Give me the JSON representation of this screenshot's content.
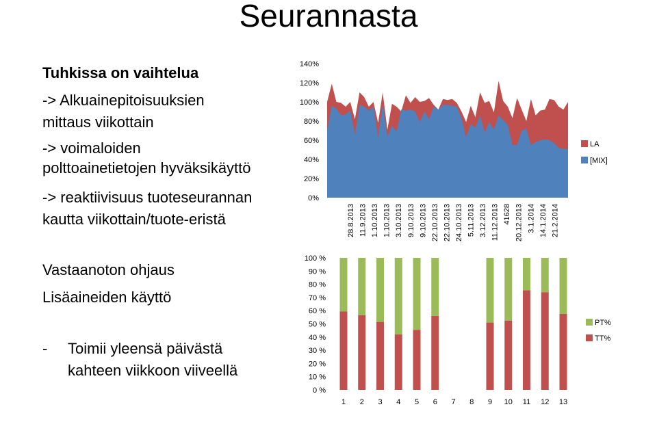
{
  "title": "Seurannasta",
  "left": {
    "heading": "Tuhkissa on vaihtelua",
    "lines": [
      "-> Alkuainepitoisuuksien",
      "mittaus viikottain",
      "-> voimaloiden",
      "polttoainetietojen hyväksikäyttö",
      "-> reaktiivisuus tuoteseurannan",
      "kautta viikottain/tuote-eristä"
    ],
    "sub1": "Vastaanoton ohjaus",
    "sub2": "Lisäaineiden käyttö",
    "dash": "-",
    "bullet1": "Toimii yleensä päivästä",
    "bullet2": "kahteen viikkoon viiveellä"
  },
  "colors": {
    "red": "#C0504D",
    "blue": "#4F81BD",
    "green": "#9BBB59"
  },
  "chart_data": [
    {
      "type": "area",
      "ylim": [
        0,
        140
      ],
      "y_ticks": [
        "140%",
        "120%",
        "100%",
        "80%",
        "60%",
        "40%",
        "20%",
        "0%"
      ],
      "x_tick_labels": [
        "28.8.2013",
        "11.9.2013",
        "1.10.2013",
        "1.10.2013",
        "3.10.2013",
        "9.10.2013",
        "9.10.2013",
        "22.10.2013",
        "22.10.2013",
        "24.10.2013",
        "5.11.2013",
        "3.12.2013",
        "11.12.2013",
        "41628",
        "20.12.2013",
        "3.1.2014",
        "14.1.2014",
        "21.2.2014"
      ],
      "series": [
        {
          "name": "LA",
          "color": "#C0504D",
          "values": [
            100,
            119,
            100,
            99,
            95,
            100,
            82,
            110,
            105,
            95,
            100,
            78,
            110,
            71,
            98,
            95,
            90,
            107,
            99,
            105,
            100,
            101,
            104,
            97,
            92,
            103,
            102,
            103,
            99,
            90,
            79,
            96,
            84,
            110,
            99,
            101,
            89,
            122,
            101,
            95,
            83,
            104,
            92,
            80,
            103,
            86,
            91,
            92,
            103,
            102,
            95,
            92,
            100
          ]
        },
        {
          "name": "[MIX]",
          "color": "#4F81BD",
          "values": [
            71,
            96,
            93,
            86,
            87,
            91,
            66,
            97,
            95,
            91,
            95,
            63,
            98,
            64,
            75,
            69,
            92,
            91,
            92,
            90,
            79,
            90,
            82,
            95,
            92,
            97,
            97,
            96,
            95,
            83,
            63,
            77,
            73,
            86,
            68,
            79,
            71,
            86,
            81,
            76,
            55,
            55,
            70,
            72,
            55,
            58,
            60,
            61,
            60,
            57,
            52,
            51,
            51
          ]
        }
      ]
    },
    {
      "type": "bar",
      "stacked": true,
      "ylim": [
        0,
        100
      ],
      "y_ticks": [
        "100 %",
        "90 %",
        "80 %",
        "70 %",
        "60 %",
        "50 %",
        "40 %",
        "30 %",
        "20 %",
        "10 %",
        "0 %"
      ],
      "categories": [
        "1",
        "2",
        "3",
        "4",
        "5",
        "6",
        "7",
        "8",
        "9",
        "10",
        "11",
        "12",
        "13"
      ],
      "series": [
        {
          "name": "TT%",
          "color": "#C0504D",
          "values": [
            59.5,
            56.5,
            51.5,
            42,
            45.5,
            56,
            null,
            null,
            51,
            52.5,
            75.5,
            74,
            57.5
          ]
        },
        {
          "name": "PT%",
          "color": "#9BBB59",
          "values": [
            40.5,
            43.5,
            48.5,
            58,
            54.5,
            44,
            null,
            null,
            49,
            47.5,
            24.5,
            26,
            42.5
          ]
        }
      ]
    }
  ]
}
